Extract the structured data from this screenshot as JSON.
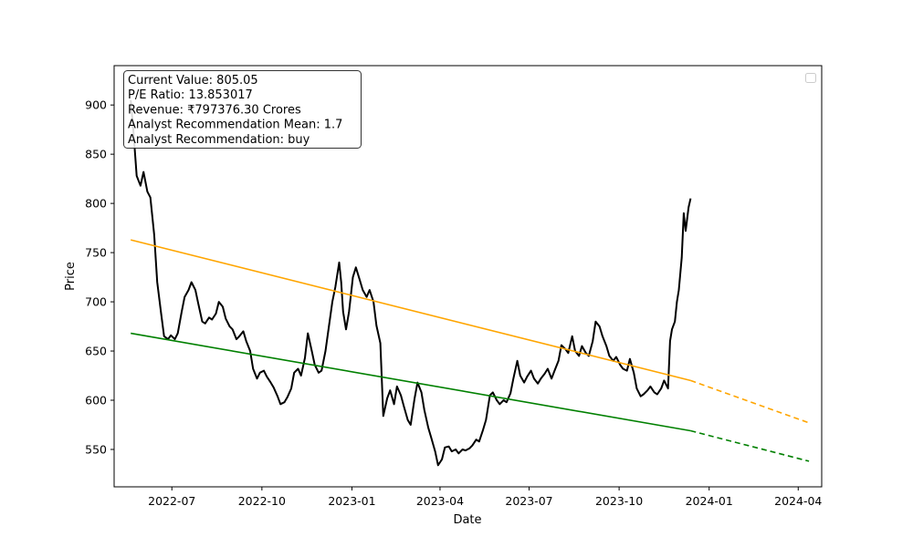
{
  "chart_data": {
    "type": "line",
    "xlabel": "Date",
    "ylabel": "Price",
    "xlim": [
      "2022-05-03",
      "2024-04-25"
    ],
    "ylim": [
      512,
      940
    ],
    "x_ticks": [
      "2022-07-01",
      "2022-10-01",
      "2023-01-01",
      "2023-04-01",
      "2023-07-01",
      "2023-10-01",
      "2024-01-01",
      "2024-04-01"
    ],
    "x_tick_labels": [
      "2022-07",
      "2022-10",
      "2023-01",
      "2023-04",
      "2023-07",
      "2023-10",
      "2024-01",
      "2024-04"
    ],
    "y_ticks": [
      550,
      600,
      650,
      700,
      750,
      800,
      850,
      900
    ],
    "grid": false,
    "legend": "top-right",
    "info_box": [
      "Current Value: 805.05",
      "P/E Ratio: 13.853017",
      "Revenue: ₹797376.30 Crores",
      "Analyst Recommendation Mean: 1.7",
      "Analyst Recommendation: buy"
    ],
    "series": [
      {
        "color": "#000000",
        "style": "solid",
        "points": [
          [
            "2022-05-20",
            905
          ],
          [
            "2022-05-23",
            870
          ],
          [
            "2022-05-26",
            828
          ],
          [
            "2022-05-30",
            818
          ],
          [
            "2022-06-02",
            832
          ],
          [
            "2022-06-06",
            812
          ],
          [
            "2022-06-09",
            806
          ],
          [
            "2022-06-13",
            768
          ],
          [
            "2022-06-16",
            720
          ],
          [
            "2022-06-20",
            688
          ],
          [
            "2022-06-23",
            665
          ],
          [
            "2022-06-27",
            662
          ],
          [
            "2022-06-30",
            666
          ],
          [
            "2022-07-04",
            662
          ],
          [
            "2022-07-07",
            668
          ],
          [
            "2022-07-11",
            690
          ],
          [
            "2022-07-14",
            705
          ],
          [
            "2022-07-18",
            712
          ],
          [
            "2022-07-21",
            720
          ],
          [
            "2022-07-25",
            712
          ],
          [
            "2022-07-28",
            698
          ],
          [
            "2022-08-01",
            680
          ],
          [
            "2022-08-04",
            678
          ],
          [
            "2022-08-08",
            684
          ],
          [
            "2022-08-11",
            682
          ],
          [
            "2022-08-15",
            688
          ],
          [
            "2022-08-18",
            700
          ],
          [
            "2022-08-22",
            695
          ],
          [
            "2022-08-25",
            683
          ],
          [
            "2022-08-29",
            675
          ],
          [
            "2022-09-01",
            672
          ],
          [
            "2022-09-05",
            662
          ],
          [
            "2022-09-08",
            665
          ],
          [
            "2022-09-12",
            670
          ],
          [
            "2022-09-15",
            660
          ],
          [
            "2022-09-19",
            650
          ],
          [
            "2022-09-22",
            632
          ],
          [
            "2022-09-26",
            622
          ],
          [
            "2022-09-29",
            628
          ],
          [
            "2022-10-03",
            630
          ],
          [
            "2022-10-06",
            624
          ],
          [
            "2022-10-10",
            618
          ],
          [
            "2022-10-13",
            613
          ],
          [
            "2022-10-17",
            604
          ],
          [
            "2022-10-20",
            596
          ],
          [
            "2022-10-24",
            598
          ],
          [
            "2022-10-27",
            603
          ],
          [
            "2022-10-31",
            612
          ],
          [
            "2022-11-03",
            628
          ],
          [
            "2022-11-07",
            632
          ],
          [
            "2022-11-10",
            625
          ],
          [
            "2022-11-14",
            643
          ],
          [
            "2022-11-17",
            668
          ],
          [
            "2022-11-21",
            650
          ],
          [
            "2022-11-24",
            636
          ],
          [
            "2022-11-28",
            628
          ],
          [
            "2022-12-01",
            630
          ],
          [
            "2022-12-05",
            650
          ],
          [
            "2022-12-08",
            672
          ],
          [
            "2022-12-12",
            700
          ],
          [
            "2022-12-15",
            715
          ],
          [
            "2022-12-19",
            740
          ],
          [
            "2022-12-21",
            720
          ],
          [
            "2022-12-23",
            690
          ],
          [
            "2022-12-26",
            672
          ],
          [
            "2022-12-29",
            690
          ],
          [
            "2023-01-02",
            725
          ],
          [
            "2023-01-05",
            735
          ],
          [
            "2023-01-09",
            722
          ],
          [
            "2023-01-12",
            712
          ],
          [
            "2023-01-16",
            705
          ],
          [
            "2023-01-19",
            712
          ],
          [
            "2023-01-23",
            700
          ],
          [
            "2023-01-26",
            676
          ],
          [
            "2023-01-30",
            658
          ],
          [
            "2023-02-02",
            584
          ],
          [
            "2023-02-06",
            602
          ],
          [
            "2023-02-09",
            610
          ],
          [
            "2023-02-13",
            596
          ],
          [
            "2023-02-16",
            614
          ],
          [
            "2023-02-20",
            605
          ],
          [
            "2023-02-23",
            594
          ],
          [
            "2023-02-27",
            580
          ],
          [
            "2023-03-02",
            575
          ],
          [
            "2023-03-06",
            602
          ],
          [
            "2023-03-09",
            618
          ],
          [
            "2023-03-13",
            608
          ],
          [
            "2023-03-16",
            590
          ],
          [
            "2023-03-20",
            572
          ],
          [
            "2023-03-23",
            562
          ],
          [
            "2023-03-27",
            548
          ],
          [
            "2023-03-30",
            534
          ],
          [
            "2023-04-03",
            540
          ],
          [
            "2023-04-06",
            552
          ],
          [
            "2023-04-10",
            553
          ],
          [
            "2023-04-13",
            548
          ],
          [
            "2023-04-17",
            550
          ],
          [
            "2023-04-20",
            546
          ],
          [
            "2023-04-24",
            550
          ],
          [
            "2023-04-27",
            549
          ],
          [
            "2023-05-01",
            551
          ],
          [
            "2023-05-04",
            554
          ],
          [
            "2023-05-08",
            560
          ],
          [
            "2023-05-11",
            558
          ],
          [
            "2023-05-15",
            570
          ],
          [
            "2023-05-18",
            580
          ],
          [
            "2023-05-22",
            605
          ],
          [
            "2023-05-25",
            608
          ],
          [
            "2023-05-29",
            600
          ],
          [
            "2023-06-01",
            596
          ],
          [
            "2023-06-05",
            600
          ],
          [
            "2023-06-08",
            598
          ],
          [
            "2023-06-12",
            607
          ],
          [
            "2023-06-15",
            622
          ],
          [
            "2023-06-19",
            640
          ],
          [
            "2023-06-22",
            625
          ],
          [
            "2023-06-26",
            618
          ],
          [
            "2023-06-29",
            624
          ],
          [
            "2023-07-03",
            630
          ],
          [
            "2023-07-06",
            622
          ],
          [
            "2023-07-10",
            617
          ],
          [
            "2023-07-13",
            622
          ],
          [
            "2023-07-17",
            627
          ],
          [
            "2023-07-20",
            632
          ],
          [
            "2023-07-24",
            622
          ],
          [
            "2023-07-27",
            630
          ],
          [
            "2023-07-31",
            640
          ],
          [
            "2023-08-03",
            656
          ],
          [
            "2023-08-07",
            652
          ],
          [
            "2023-08-10",
            648
          ],
          [
            "2023-08-14",
            665
          ],
          [
            "2023-08-17",
            650
          ],
          [
            "2023-08-21",
            645
          ],
          [
            "2023-08-24",
            655
          ],
          [
            "2023-08-28",
            648
          ],
          [
            "2023-08-31",
            645
          ],
          [
            "2023-09-04",
            660
          ],
          [
            "2023-09-07",
            680
          ],
          [
            "2023-09-11",
            675
          ],
          [
            "2023-09-14",
            665
          ],
          [
            "2023-09-18",
            655
          ],
          [
            "2023-09-21",
            645
          ],
          [
            "2023-09-25",
            640
          ],
          [
            "2023-09-28",
            644
          ],
          [
            "2023-10-02",
            636
          ],
          [
            "2023-10-05",
            632
          ],
          [
            "2023-10-09",
            630
          ],
          [
            "2023-10-12",
            642
          ],
          [
            "2023-10-16",
            628
          ],
          [
            "2023-10-19",
            612
          ],
          [
            "2023-10-23",
            604
          ],
          [
            "2023-10-26",
            606
          ],
          [
            "2023-10-30",
            610
          ],
          [
            "2023-11-02",
            614
          ],
          [
            "2023-11-06",
            608
          ],
          [
            "2023-11-09",
            606
          ],
          [
            "2023-11-13",
            612
          ],
          [
            "2023-11-16",
            620
          ],
          [
            "2023-11-20",
            612
          ],
          [
            "2023-11-22",
            660
          ],
          [
            "2023-11-24",
            672
          ],
          [
            "2023-11-27",
            680
          ],
          [
            "2023-11-29",
            700
          ],
          [
            "2023-12-01",
            712
          ],
          [
            "2023-12-04",
            745
          ],
          [
            "2023-12-06",
            790
          ],
          [
            "2023-12-08",
            772
          ],
          [
            "2023-12-11",
            796
          ],
          [
            "2023-12-13",
            805
          ]
        ]
      },
      {
        "color": "#ffa500",
        "style": "solid",
        "points": [
          [
            "2022-05-20",
            763
          ],
          [
            "2023-12-13",
            620
          ]
        ]
      },
      {
        "color": "#ffa500",
        "style": "dashed",
        "points": [
          [
            "2023-12-13",
            620
          ],
          [
            "2024-04-12",
            577
          ]
        ]
      },
      {
        "color": "#008000",
        "style": "solid",
        "points": [
          [
            "2022-05-20",
            668
          ],
          [
            "2023-12-13",
            569
          ]
        ]
      },
      {
        "color": "#008000",
        "style": "dashed",
        "points": [
          [
            "2023-12-13",
            569
          ],
          [
            "2024-04-12",
            538
          ]
        ]
      }
    ]
  }
}
